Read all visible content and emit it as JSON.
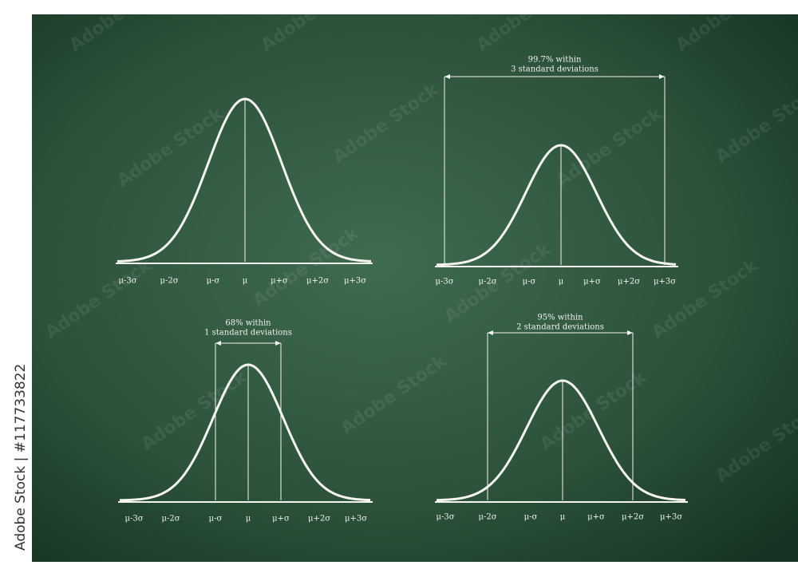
{
  "side_text": "Adobe Stock | #117733822",
  "watermark": "Adobe Stock",
  "panels": [
    {
      "labels": [
        "μ-3σ",
        "μ-2σ",
        "μ-σ",
        "μ",
        "μ+σ",
        "μ+2σ",
        "μ+3σ"
      ]
    },
    {
      "labels": [
        "μ-3σ",
        "μ-2σ",
        "μ-σ",
        "μ",
        "μ+σ",
        "μ+2σ",
        "μ+3σ"
      ],
      "annotation": {
        "line1": "99.7% within",
        "line2": "3 standard deviations"
      }
    },
    {
      "labels": [
        "μ-3σ",
        "μ-2σ",
        "μ-σ",
        "μ",
        "μ+σ",
        "μ+2σ",
        "μ+3σ"
      ],
      "annotation": {
        "line1": "68% within",
        "line2": "1 standard deviations"
      }
    },
    {
      "labels": [
        "μ-3σ",
        "μ-2σ",
        "μ-σ",
        "μ",
        "μ+σ",
        "μ+2σ",
        "μ+3σ"
      ],
      "annotation": {
        "line1": "95% within",
        "line2": "2 standard deviations"
      }
    }
  ]
}
